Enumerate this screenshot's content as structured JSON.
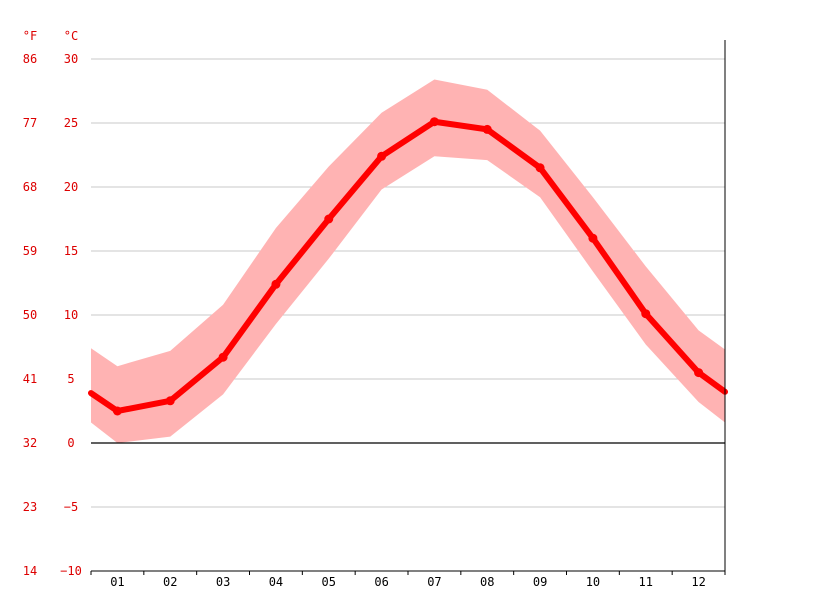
{
  "chart_data": {
    "type": "line",
    "y_unit_left": "°F",
    "y_unit_right": "°C",
    "categories": [
      "01",
      "02",
      "03",
      "04",
      "05",
      "06",
      "07",
      "08",
      "09",
      "10",
      "11",
      "12"
    ],
    "y_ticks_c": [
      "30",
      "25",
      "20",
      "15",
      "10",
      "5",
      "0",
      "−5",
      "−10"
    ],
    "y_ticks_f": [
      "86",
      "77",
      "68",
      "59",
      "50",
      "41",
      "32",
      "23",
      "14"
    ],
    "ylim": [
      -10,
      30
    ],
    "grid": true,
    "series": [
      {
        "values": [
          2.5,
          3.3,
          6.7,
          12.4,
          17.5,
          22.4,
          25.1,
          24.5,
          21.5,
          16.0,
          10.1,
          5.5
        ]
      }
    ],
    "band": {
      "upper": [
        6.0,
        7.2,
        10.8,
        16.8,
        21.6,
        25.8,
        28.4,
        27.6,
        24.4,
        19.2,
        13.8,
        8.8
      ],
      "lower": [
        0.0,
        0.5,
        3.8,
        9.3,
        14.4,
        19.8,
        22.4,
        22.1,
        19.2,
        13.4,
        7.7,
        3.2
      ]
    },
    "edge_values": {
      "left": {
        "mean": 3.9,
        "upper": 7.4,
        "lower": 1.6
      },
      "right": {
        "mean": 4.0,
        "upper": 7.3,
        "lower": 1.6
      }
    },
    "colors": {
      "line": "#ff0000",
      "band": "#ffb3b3",
      "tick_labels": "#dd0000"
    }
  }
}
